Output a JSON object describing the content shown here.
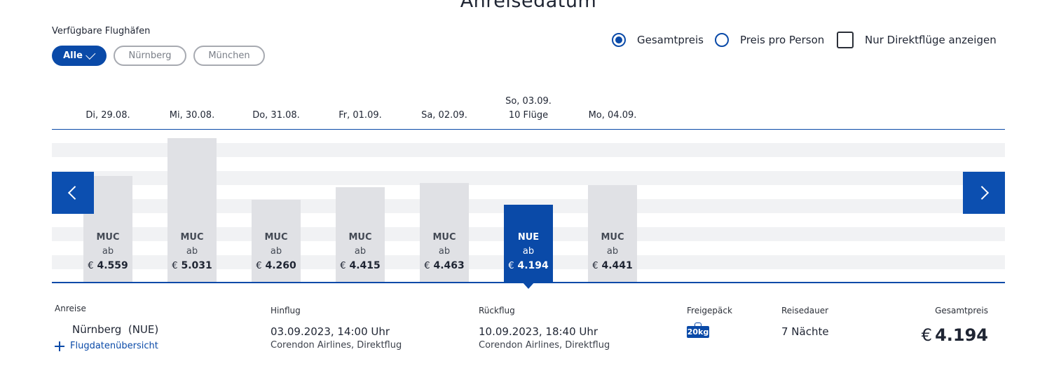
{
  "page_title": "Anreisedatum",
  "airports": {
    "label": "Verfügbare Flughäfen",
    "chips": [
      {
        "label": "Alle",
        "selected": true
      },
      {
        "label": "Nürnberg",
        "selected": false
      },
      {
        "label": "München",
        "selected": false
      }
    ]
  },
  "options": {
    "total_price": "Gesamtpreis",
    "per_person": "Preis pro Person",
    "direct_only": "Nur Direktflüge anzeigen"
  },
  "days": [
    {
      "date": "Di, 29.08.",
      "flights": "",
      "airport": "MUC",
      "ab": "ab",
      "currency": "€",
      "price": "4.559",
      "value": 4559
    },
    {
      "date": "Mi, 30.08.",
      "flights": "",
      "airport": "MUC",
      "ab": "ab",
      "currency": "€",
      "price": "5.031",
      "value": 5031
    },
    {
      "date": "Do, 31.08.",
      "flights": "",
      "airport": "MUC",
      "ab": "ab",
      "currency": "€",
      "price": "4.260",
      "value": 4260
    },
    {
      "date": "Fr, 01.09.",
      "flights": "",
      "airport": "MUC",
      "ab": "ab",
      "currency": "€",
      "price": "4.415",
      "value": 4415
    },
    {
      "date": "Sa, 02.09.",
      "flights": "",
      "airport": "MUC",
      "ab": "ab",
      "currency": "€",
      "price": "4.463",
      "value": 4463
    },
    {
      "date": "So, 03.09.",
      "flights": "10 Flüge",
      "airport": "NUE",
      "ab": "ab",
      "currency": "€",
      "price": "4.194",
      "value": 4194,
      "selected": true
    },
    {
      "date": "Mo, 04.09.",
      "flights": "",
      "airport": "MUC",
      "ab": "ab",
      "currency": "€",
      "price": "4.441",
      "value": 4441
    }
  ],
  "details": {
    "arrival_label": "Anreise",
    "arrival_value": "Nürnberg  (NUE)",
    "flight_overview": "Flugdatenübersicht",
    "outbound_label": "Hinflug",
    "outbound_value": "03.09.2023, 14:00 Uhr",
    "outbound_airline": "Corendon Airlines, Direktflug",
    "return_label": "Rückflug",
    "return_value": "10.09.2023, 18:40 Uhr",
    "return_airline": "Corendon Airlines, Direktflug",
    "baggage_label": "Freigepäck",
    "baggage_value": "20kg",
    "duration_label": "Reisedauer",
    "duration_value": "7 Nächte",
    "total_label": "Gesamtpreis",
    "total_currency": "€",
    "total_value": "4.194"
  }
}
